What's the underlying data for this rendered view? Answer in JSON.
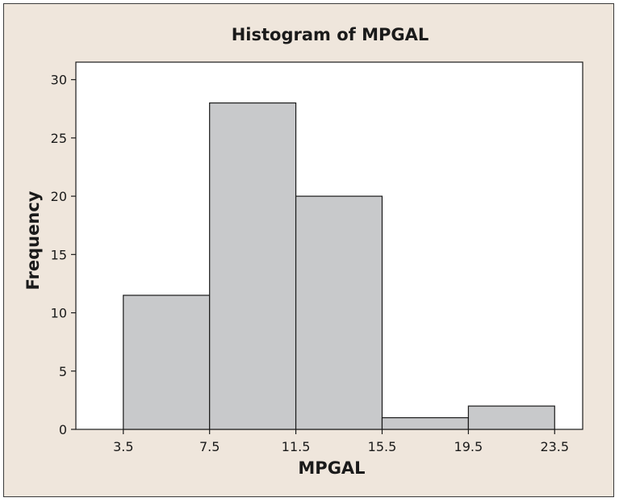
{
  "colors": {
    "background": "#efe6dc",
    "plot_area": "#ffffff",
    "bar_fill": "#c8c9cb",
    "bar_stroke": "#1a1a1a"
  },
  "chart_data": {
    "type": "bar",
    "title": "Histogram of MPGAL",
    "xlabel": "MPGAL",
    "ylabel": "Frequency",
    "bins": [
      {
        "start": 3.5,
        "end": 7.5,
        "value": 11.5
      },
      {
        "start": 7.5,
        "end": 11.5,
        "value": 28
      },
      {
        "start": 11.5,
        "end": 15.5,
        "value": 20
      },
      {
        "start": 15.5,
        "end": 19.5,
        "value": 1
      },
      {
        "start": 19.5,
        "end": 23.5,
        "value": 2
      }
    ],
    "x_ticks": [
      "3.5",
      "7.5",
      "11.5",
      "15.5",
      "19.5",
      "23.5"
    ],
    "y_ticks": [
      "0",
      "5",
      "10",
      "15",
      "20",
      "25",
      "30"
    ],
    "xlim": [
      1.3,
      24.8
    ],
    "ylim": [
      0,
      31.5
    ],
    "grid": false,
    "legend": "none"
  }
}
